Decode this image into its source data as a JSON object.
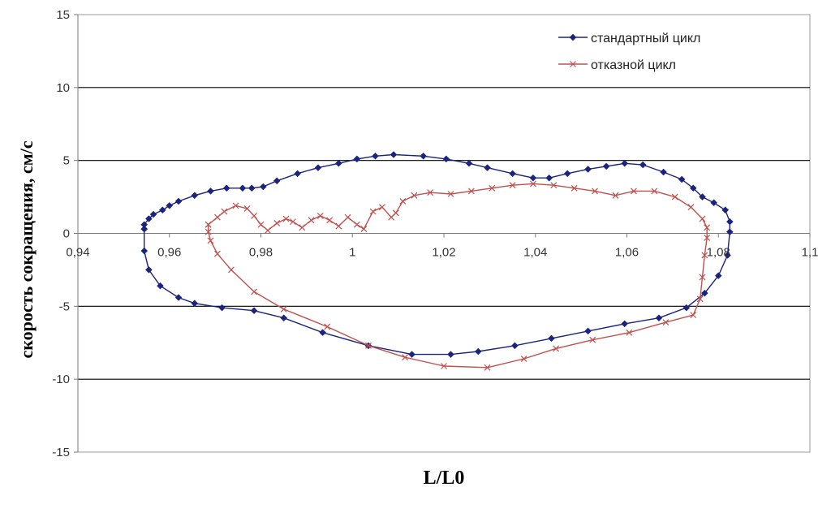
{
  "chart_data": {
    "type": "scatter",
    "title": "",
    "xlabel": "L/L0",
    "ylabel": "скорость сокращения, см/с",
    "xlim": [
      0.94,
      1.1
    ],
    "ylim": [
      -15,
      15
    ],
    "xticks": [
      0.94,
      0.96,
      0.98,
      1,
      1.02,
      1.04,
      1.06,
      1.08,
      1.1
    ],
    "xtick_labels": [
      "0,94",
      "0,96",
      "0,98",
      "1",
      "1,02",
      "1,04",
      "1,06",
      "1,08",
      "1,1"
    ],
    "yticks": [
      -15,
      -10,
      -5,
      0,
      5,
      10,
      15
    ],
    "ytick_labels": [
      "-15",
      "-10",
      "-5",
      "0",
      "5",
      "10",
      "15"
    ],
    "grid": "horizontal major lines",
    "legend_position": "top-right",
    "colors": {
      "series_1": "#1a237e",
      "series_2": "#c0504d"
    },
    "series": [
      {
        "name": "стандартный цикл",
        "marker": "diamond",
        "color": "#1a237e",
        "points": [
          [
            0.9545,
            0.3
          ],
          [
            0.9545,
            0.6
          ],
          [
            0.9555,
            1.0
          ],
          [
            0.9565,
            1.3
          ],
          [
            0.9585,
            1.6
          ],
          [
            0.96,
            1.9
          ],
          [
            0.962,
            2.2
          ],
          [
            0.9655,
            2.6
          ],
          [
            0.969,
            2.9
          ],
          [
            0.9725,
            3.1
          ],
          [
            0.976,
            3.1
          ],
          [
            0.978,
            3.1
          ],
          [
            0.9805,
            3.2
          ],
          [
            0.9835,
            3.6
          ],
          [
            0.988,
            4.1
          ],
          [
            0.9925,
            4.5
          ],
          [
            0.997,
            4.8
          ],
          [
            1.001,
            5.1
          ],
          [
            1.005,
            5.3
          ],
          [
            1.009,
            5.4
          ],
          [
            1.0155,
            5.3
          ],
          [
            1.0205,
            5.1
          ],
          [
            1.0255,
            4.8
          ],
          [
            1.0295,
            4.5
          ],
          [
            1.035,
            4.1
          ],
          [
            1.0395,
            3.8
          ],
          [
            1.043,
            3.8
          ],
          [
            1.047,
            4.1
          ],
          [
            1.0515,
            4.4
          ],
          [
            1.0555,
            4.6
          ],
          [
            1.0595,
            4.8
          ],
          [
            1.0635,
            4.7
          ],
          [
            1.068,
            4.2
          ],
          [
            1.072,
            3.7
          ],
          [
            1.0745,
            3.1
          ],
          [
            1.0765,
            2.5
          ],
          [
            1.079,
            2.1
          ],
          [
            1.0815,
            1.6
          ],
          [
            1.0825,
            0.8
          ],
          [
            1.0825,
            0.1
          ],
          [
            1.082,
            -1.5
          ],
          [
            1.08,
            -2.9
          ],
          [
            1.077,
            -4.1
          ],
          [
            1.073,
            -5.1
          ],
          [
            1.067,
            -5.8
          ],
          [
            1.0595,
            -6.2
          ],
          [
            1.0515,
            -6.7
          ],
          [
            1.0435,
            -7.2
          ],
          [
            1.0355,
            -7.7
          ],
          [
            1.0275,
            -8.1
          ],
          [
            1.0215,
            -8.3
          ],
          [
            1.013,
            -8.3
          ],
          [
            1.0035,
            -7.7
          ],
          [
            0.9935,
            -6.8
          ],
          [
            0.985,
            -5.8
          ],
          [
            0.9785,
            -5.3
          ],
          [
            0.9715,
            -5.1
          ],
          [
            0.9655,
            -4.8
          ],
          [
            0.962,
            -4.4
          ],
          [
            0.958,
            -3.6
          ],
          [
            0.9555,
            -2.5
          ],
          [
            0.9545,
            -1.2
          ],
          [
            0.9545,
            0.3
          ]
        ]
      },
      {
        "name": "отказной цикл",
        "marker": "x",
        "color": "#c0504d",
        "points": [
          [
            0.9685,
            0.6
          ],
          [
            0.9705,
            1.1
          ],
          [
            0.972,
            1.5
          ],
          [
            0.9745,
            1.9
          ],
          [
            0.977,
            1.7
          ],
          [
            0.9785,
            1.2
          ],
          [
            0.98,
            0.6
          ],
          [
            0.9815,
            0.2
          ],
          [
            0.9835,
            0.7
          ],
          [
            0.9855,
            1.0
          ],
          [
            0.987,
            0.8
          ],
          [
            0.989,
            0.4
          ],
          [
            0.991,
            0.9
          ],
          [
            0.993,
            1.2
          ],
          [
            0.995,
            0.9
          ],
          [
            0.997,
            0.5
          ],
          [
            0.999,
            1.1
          ],
          [
            1.001,
            0.6
          ],
          [
            1.0025,
            0.3
          ],
          [
            1.0045,
            1.5
          ],
          [
            1.0065,
            1.8
          ],
          [
            1.0085,
            1.1
          ],
          [
            1.0095,
            1.4
          ],
          [
            1.011,
            2.2
          ],
          [
            1.0135,
            2.6
          ],
          [
            1.017,
            2.8
          ],
          [
            1.0215,
            2.7
          ],
          [
            1.026,
            2.9
          ],
          [
            1.0305,
            3.1
          ],
          [
            1.035,
            3.3
          ],
          [
            1.0395,
            3.4
          ],
          [
            1.044,
            3.3
          ],
          [
            1.0485,
            3.1
          ],
          [
            1.053,
            2.9
          ],
          [
            1.0575,
            2.6
          ],
          [
            1.0615,
            2.9
          ],
          [
            1.066,
            2.9
          ],
          [
            1.0705,
            2.5
          ],
          [
            1.074,
            1.8
          ],
          [
            1.0765,
            1.0
          ],
          [
            1.0775,
            0.4
          ],
          [
            1.0775,
            -0.3
          ],
          [
            1.077,
            -1.5
          ],
          [
            1.0765,
            -3.0
          ],
          [
            1.076,
            -4.5
          ],
          [
            1.0745,
            -5.6
          ],
          [
            1.0685,
            -6.1
          ],
          [
            1.0605,
            -6.8
          ],
          [
            1.0525,
            -7.3
          ],
          [
            1.0445,
            -7.9
          ],
          [
            1.0375,
            -8.6
          ],
          [
            1.0295,
            -9.2
          ],
          [
            1.02,
            -9.1
          ],
          [
            1.0115,
            -8.5
          ],
          [
            1.0035,
            -7.7
          ],
          [
            0.9945,
            -6.4
          ],
          [
            0.985,
            -5.2
          ],
          [
            0.9785,
            -4.0
          ],
          [
            0.9735,
            -2.5
          ],
          [
            0.9705,
            -1.4
          ],
          [
            0.969,
            -0.5
          ],
          [
            0.9685,
            0.1
          ],
          [
            0.9685,
            0.6
          ]
        ]
      }
    ]
  }
}
